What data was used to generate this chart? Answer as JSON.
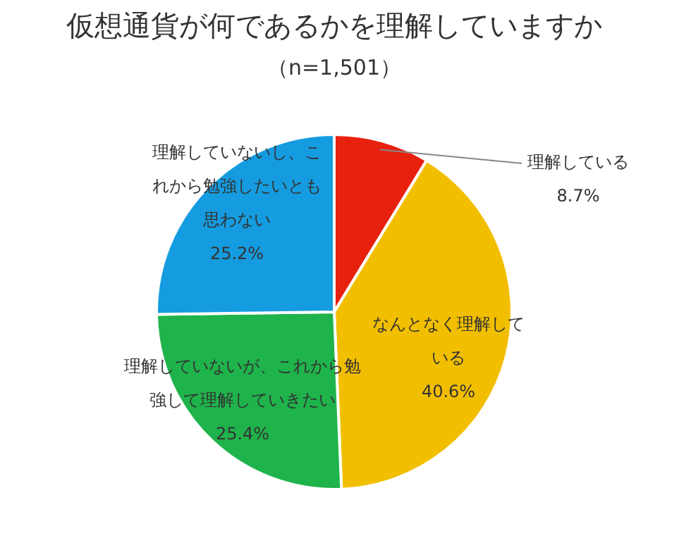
{
  "chart_data": {
    "type": "pie",
    "title": "仮想通貨が何であるかを理解していますか",
    "subtitle": "（n=1,501）",
    "categories": [
      "理解している",
      "なんとなく理解している",
      "理解していないが、これから勉強して理解していきたい",
      "理解していないし、これから勉強したいとも思わない"
    ],
    "values": [
      8.7,
      40.6,
      25.4,
      25.2
    ],
    "value_labels": [
      "8.7%",
      "40.6%",
      "25.4%",
      "25.2%"
    ],
    "colors": [
      "#e8210f",
      "#f2bf00",
      "#1fb34b",
      "#159ce0"
    ],
    "legend": false
  }
}
